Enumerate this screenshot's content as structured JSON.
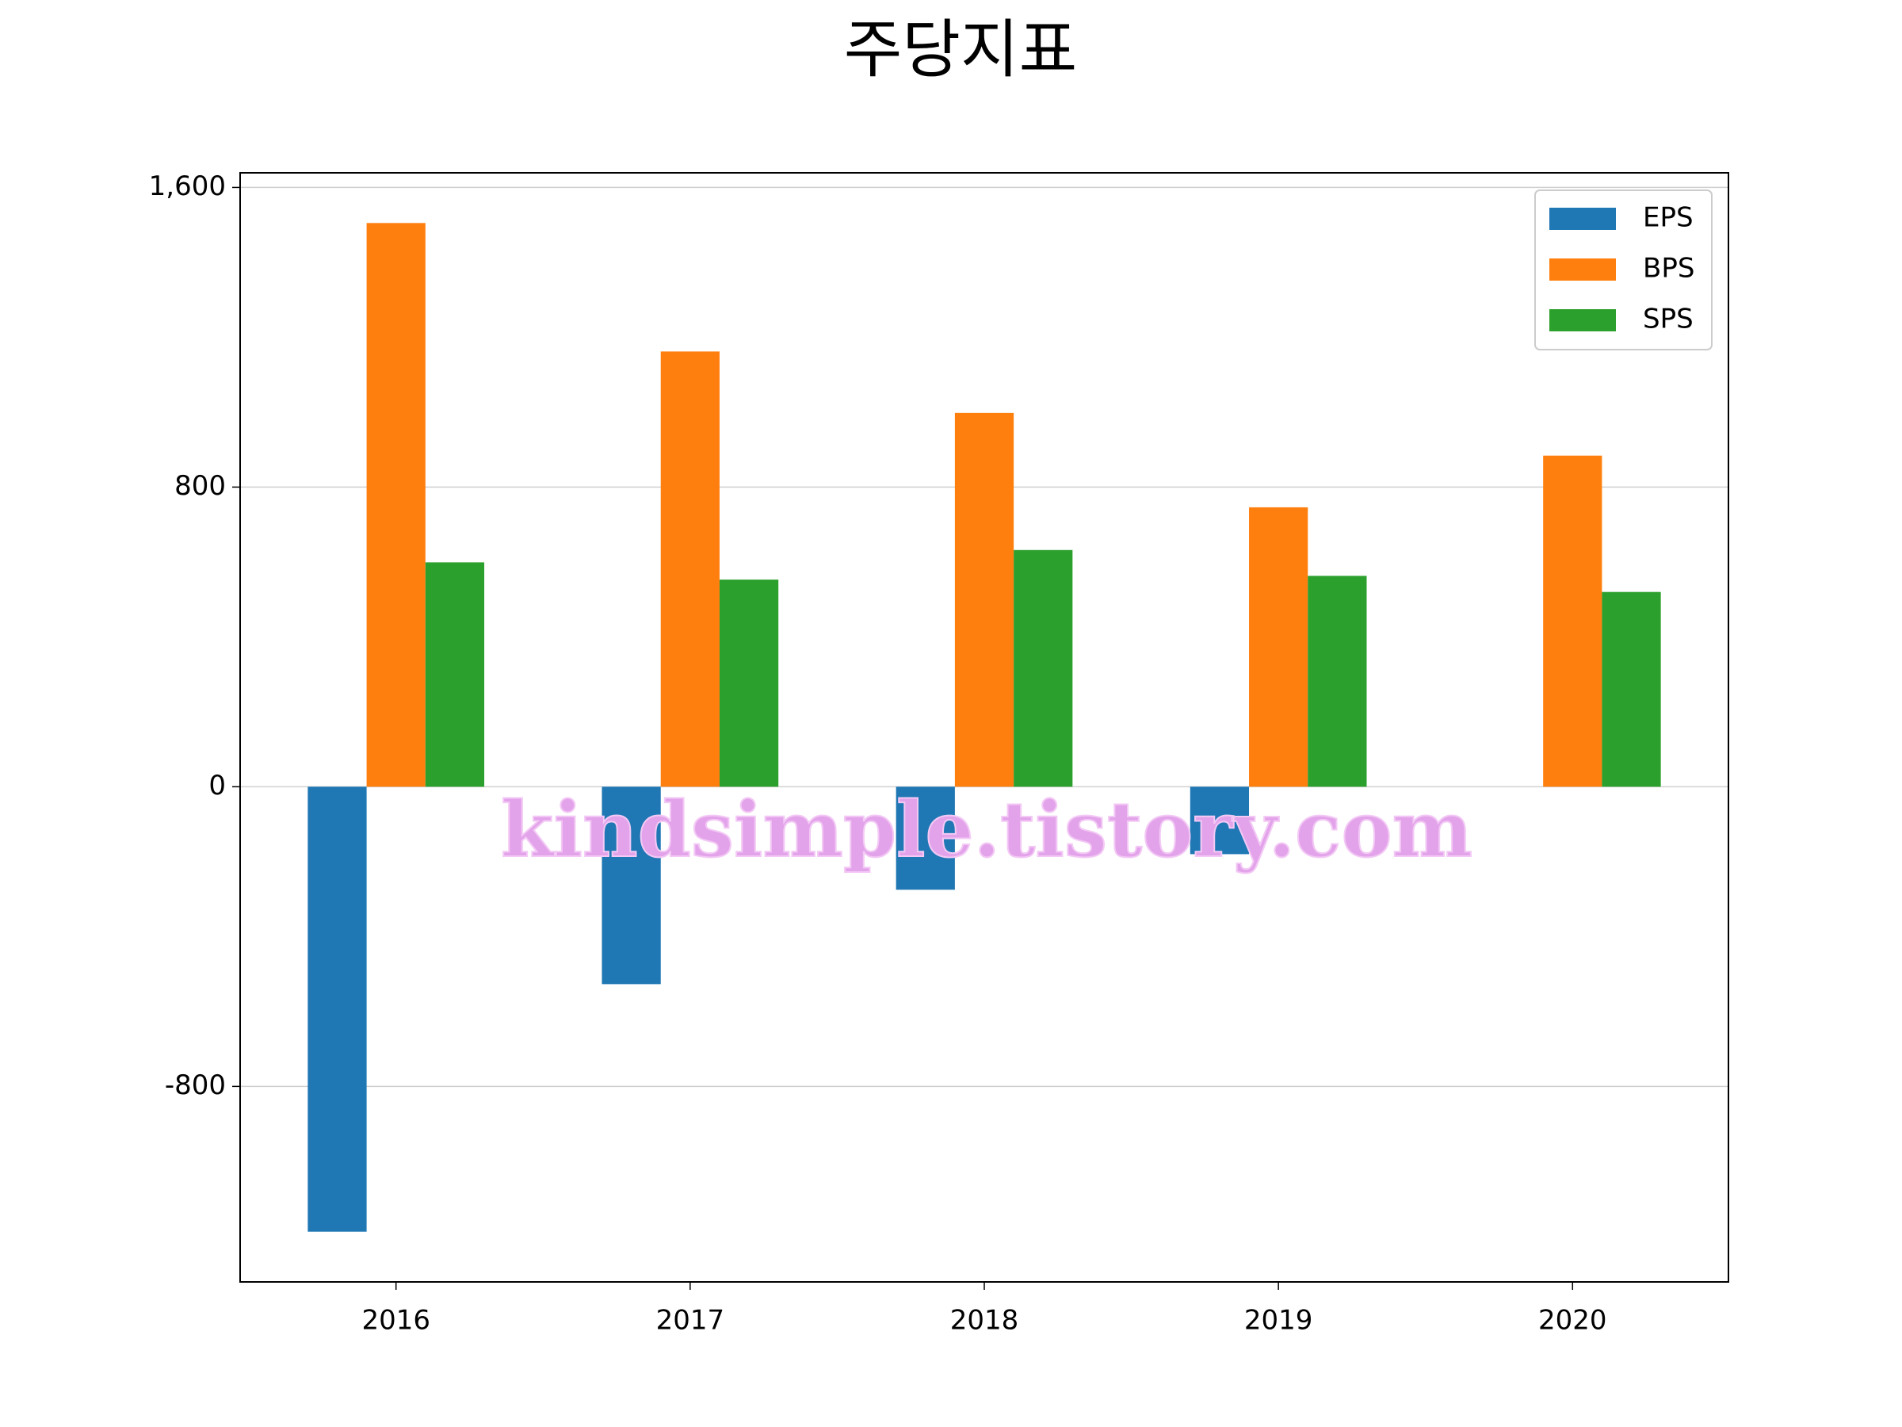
{
  "chart_data": {
    "type": "bar",
    "title": "주당지표",
    "categories": [
      "2016",
      "2017",
      "2018",
      "2019",
      "2020"
    ],
    "series": [
      {
        "name": "EPS",
        "color": "#1f77b4",
        "values": [
          -1188,
          -527,
          -275,
          -180,
          0
        ]
      },
      {
        "name": "BPS",
        "color": "#ff7f0e",
        "values": [
          1505,
          1162,
          998,
          746,
          884
        ]
      },
      {
        "name": "SPS",
        "color": "#2ca02c",
        "values": [
          599,
          553,
          632,
          563,
          520
        ]
      }
    ],
    "ylim": [
      -1322,
      1639
    ],
    "yticks": [
      -800,
      0,
      800,
      {
        "value": 1600,
        "label": "1,600"
      }
    ],
    "grid": true,
    "legend": "upper right",
    "annotation": "kindsimple.tistory.com"
  }
}
